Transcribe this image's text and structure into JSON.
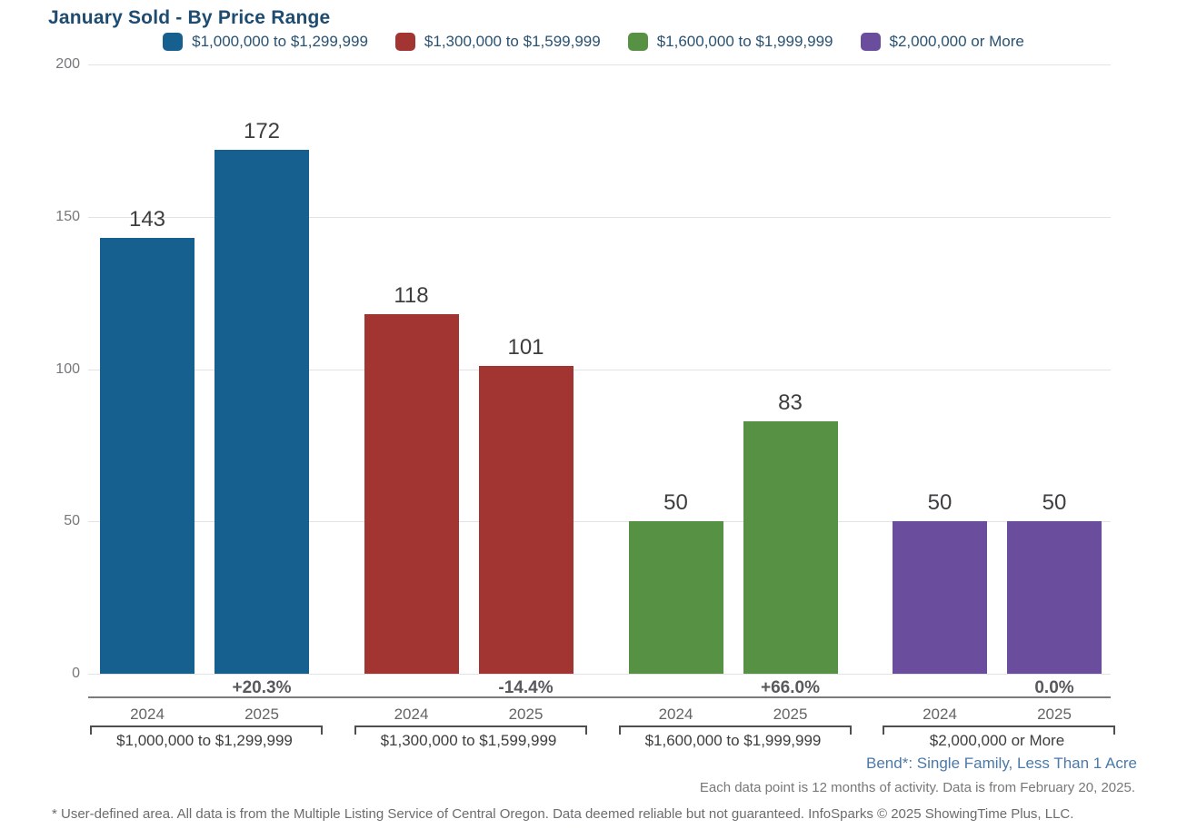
{
  "page": {
    "title": "January Sold - By Price Range",
    "context_line": "Bend*: Single Family, Less Than 1 Acre",
    "data_note": "Each data point is 12 months of activity. Data is from February 20, 2025.",
    "disclaimer": "* User-defined area. All data is from the Multiple Listing Service of Central Oregon. Data deemed reliable but not guaranteed. InfoSparks © 2025 ShowingTime Plus, LLC."
  },
  "colors": {
    "title_text": "#1E4B70",
    "legend_text": "#2A5272",
    "context_text": "#4B79A9",
    "axis_text": "#76777A",
    "value_text": "#3E3E40",
    "gridline": "#E3E3E5"
  },
  "chart_data": {
    "type": "bar",
    "title": "January Sold - By Price Range",
    "categories": [
      "2024",
      "2025"
    ],
    "ylim": [
      0,
      200
    ],
    "yticks": [
      0,
      50,
      100,
      150,
      200
    ],
    "grid": true,
    "legend_position": "top",
    "groups": [
      {
        "label": "$1,000,000 to $1,299,999",
        "color": "#166090",
        "values": [
          143,
          172
        ],
        "pct_change": "+20.3%"
      },
      {
        "label": "$1,300,000 to $1,599,999",
        "color": "#A23432",
        "values": [
          118,
          101
        ],
        "pct_change": "-14.4%"
      },
      {
        "label": "$1,600,000 to $1,999,999",
        "color": "#579144",
        "values": [
          50,
          83
        ],
        "pct_change": "+66.0%"
      },
      {
        "label": "$2,000,000 or More",
        "color": "#6A4E9D",
        "values": [
          50,
          50
        ],
        "pct_change": "0.0%"
      }
    ]
  }
}
